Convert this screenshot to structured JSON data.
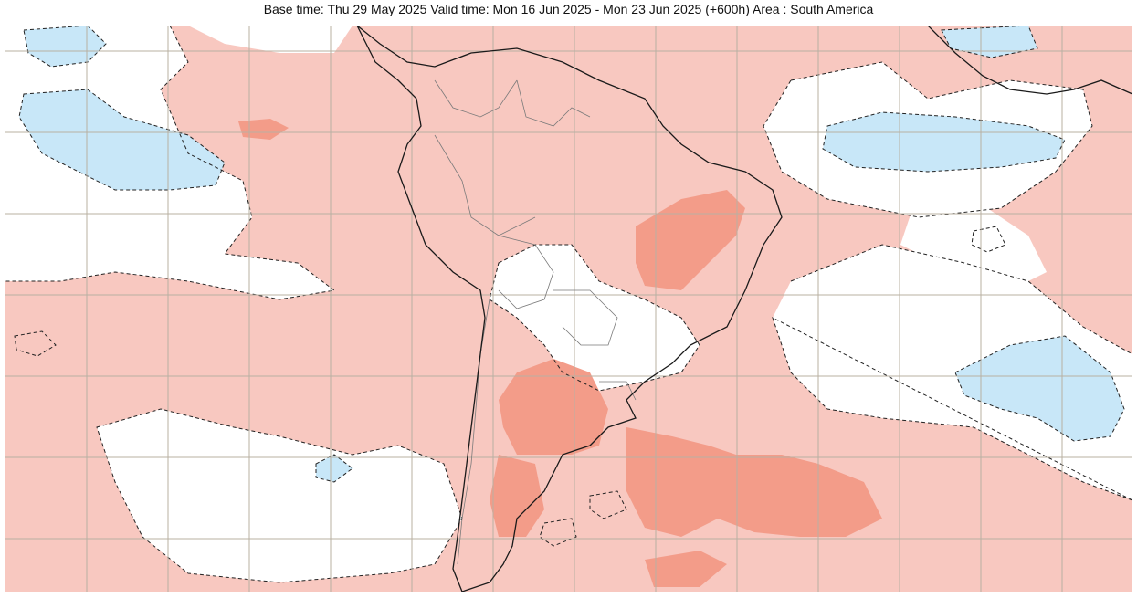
{
  "header": {
    "title": "Base time: Thu 29 May 2025 Valid time: Mon 16 Jun 2025 - Mon 23 Jun 2025 (+600h) Area : South America"
  },
  "map": {
    "area": "South America",
    "legend_colors": {
      "slightly_above": "#f8c8c0",
      "above": "#f39c89",
      "slightly_below": "#c8e7f8",
      "neutral": "#ffffff",
      "gridline": "#b8b0a2",
      "coastline": "#1a1a1a",
      "border": "#7a7a7a"
    }
  }
}
